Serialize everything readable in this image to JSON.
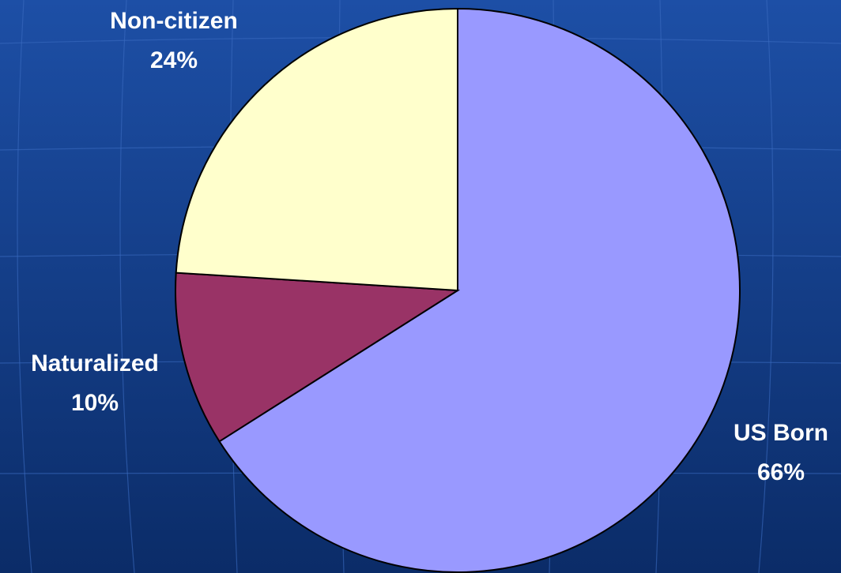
{
  "chart_data": {
    "type": "pie",
    "categories": [
      "US Born",
      "Naturalized",
      "Non-citizen"
    ],
    "values": [
      66,
      10,
      24
    ],
    "value_labels": [
      "66%",
      "10%",
      "24%"
    ],
    "colors": [
      "#9999ff",
      "#993366",
      "#ffffcc"
    ]
  }
}
